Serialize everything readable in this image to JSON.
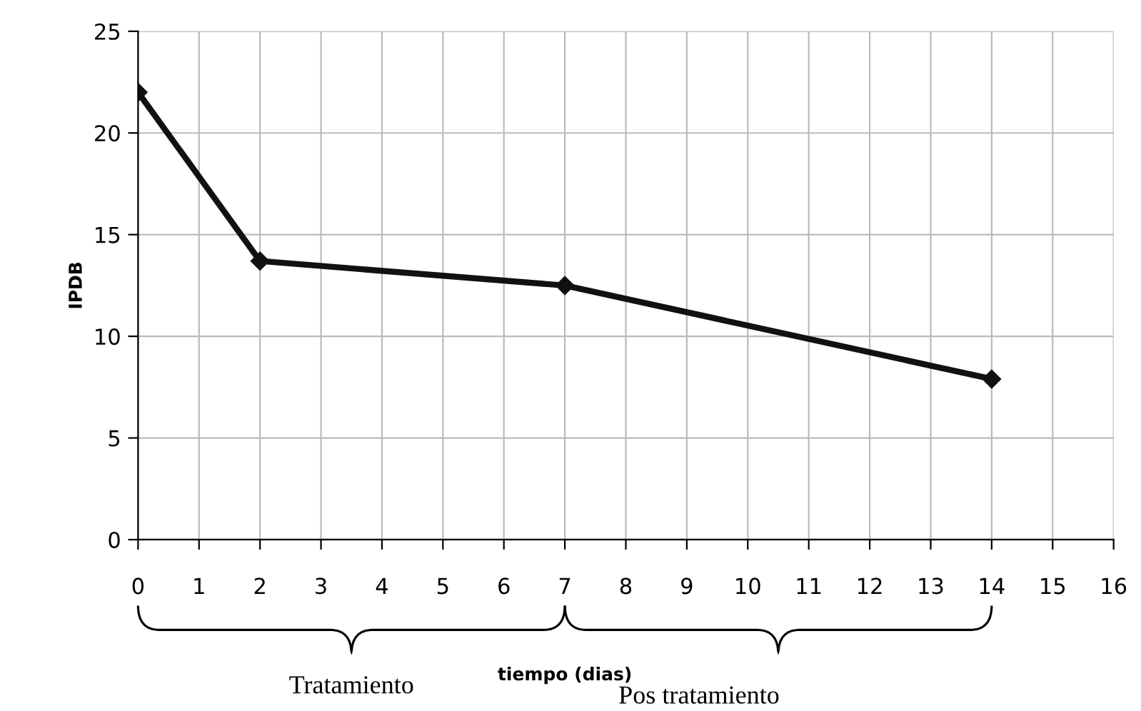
{
  "chart_data": {
    "type": "line",
    "xlabel": "tiempo (dias)",
    "ylabel": "IPDB",
    "x": [
      0,
      2,
      7,
      14
    ],
    "series": [
      {
        "color": "#111111",
        "values": [
          22,
          13.7,
          12.5,
          7.9
        ]
      }
    ],
    "xlim": [
      0,
      16
    ],
    "xticks": [
      0,
      1,
      2,
      3,
      4,
      5,
      6,
      7,
      8,
      9,
      10,
      11,
      12,
      13,
      14,
      15,
      16
    ],
    "ylim": [
      0,
      25
    ],
    "yticks": [
      0,
      5,
      10,
      15,
      20,
      25
    ],
    "grid": true,
    "marker": "diamond",
    "line_style": "solid",
    "annotations": [
      "Tratamiento",
      "Pos tratamiento"
    ]
  }
}
